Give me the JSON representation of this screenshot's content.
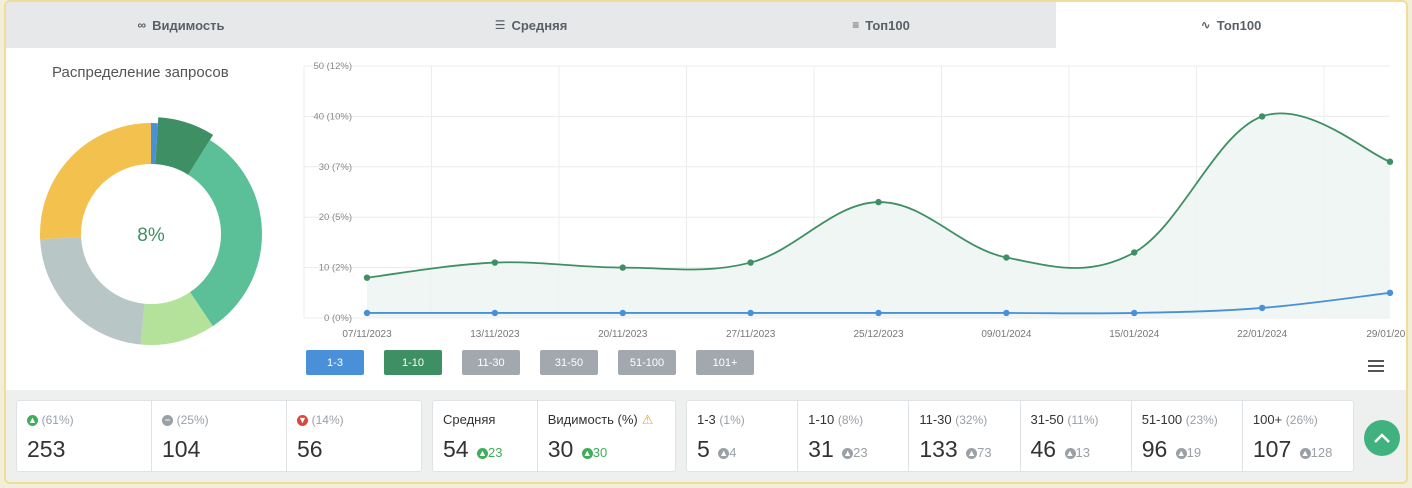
{
  "tabs": [
    {
      "label": "Видимость",
      "icon": "glasses-icon"
    },
    {
      "label": "Средняя",
      "icon": "lines-icon"
    },
    {
      "label": "Топ100",
      "icon": "stack-icon"
    },
    {
      "label": "Топ100",
      "icon": "line-chart-icon"
    }
  ],
  "donut": {
    "title": "Распределение запросов",
    "center_label": "8%",
    "segments": [
      {
        "name": "1-3",
        "percent": 1,
        "color": "#4a90d9"
      },
      {
        "name": "1-10",
        "percent": 8,
        "color": "#3f8f64"
      },
      {
        "name": "11-30",
        "percent": 32,
        "color": "#5bbf98"
      },
      {
        "name": "31-50",
        "percent": 11,
        "color": "#b4e29a"
      },
      {
        "name": "51-100",
        "percent": 23,
        "color": "#b8c6c5"
      },
      {
        "name": "100+",
        "percent": 26,
        "color": "#f3c24e"
      }
    ]
  },
  "chart_data": {
    "type": "area",
    "x": [
      "07/11/2023",
      "13/11/2023",
      "20/11/2023",
      "27/11/2023",
      "25/12/2023",
      "09/01/2024",
      "15/01/2024",
      "22/01/2024",
      "29/01/20..."
    ],
    "y_ticks": [
      "0 (0%)",
      "10 (2%)",
      "20 (5%)",
      "30 (7%)",
      "40 (10%)",
      "50 (12%)"
    ],
    "ylim": [
      0,
      50
    ],
    "series": [
      {
        "name": "1-10",
        "color": "#3f8f64",
        "values": [
          8,
          11,
          10,
          11,
          23,
          12,
          13,
          40,
          31
        ]
      },
      {
        "name": "1-3",
        "color": "#4a90d9",
        "values": [
          1,
          1,
          1,
          1,
          1,
          1,
          1,
          2,
          5
        ]
      }
    ],
    "grid": true
  },
  "range_buttons": [
    {
      "label": "1-3",
      "color": "#4a90d9"
    },
    {
      "label": "1-10",
      "color": "#3f8f64"
    },
    {
      "label": "11-30",
      "color": "#a2a8ad"
    },
    {
      "label": "31-50",
      "color": "#a2a8ad"
    },
    {
      "label": "51-100",
      "color": "#a2a8ad"
    },
    {
      "label": "101+",
      "color": "#a2a8ad"
    }
  ],
  "stats": {
    "trend": [
      {
        "pct": "(61%)",
        "value": "253"
      },
      {
        "pct": "(25%)",
        "value": "104"
      },
      {
        "pct": "(14%)",
        "value": "56"
      }
    ],
    "avg": {
      "label": "Средняя",
      "value": "54",
      "delta": "23"
    },
    "vis": {
      "label": "Видимость (%)",
      "value": "30",
      "delta": "30"
    },
    "ranges": [
      {
        "label": "1-3",
        "pct": "(1%)",
        "value": "5",
        "delta": "4"
      },
      {
        "label": "1-10",
        "pct": "(8%)",
        "value": "31",
        "delta": "23"
      },
      {
        "label": "11-30",
        "pct": "(32%)",
        "value": "133",
        "delta": "73"
      },
      {
        "label": "31-50",
        "pct": "(11%)",
        "value": "46",
        "delta": "13"
      },
      {
        "label": "51-100",
        "pct": "(23%)",
        "value": "96",
        "delta": "19"
      },
      {
        "label": "100+",
        "pct": "(26%)",
        "value": "107",
        "delta": "128"
      }
    ]
  }
}
